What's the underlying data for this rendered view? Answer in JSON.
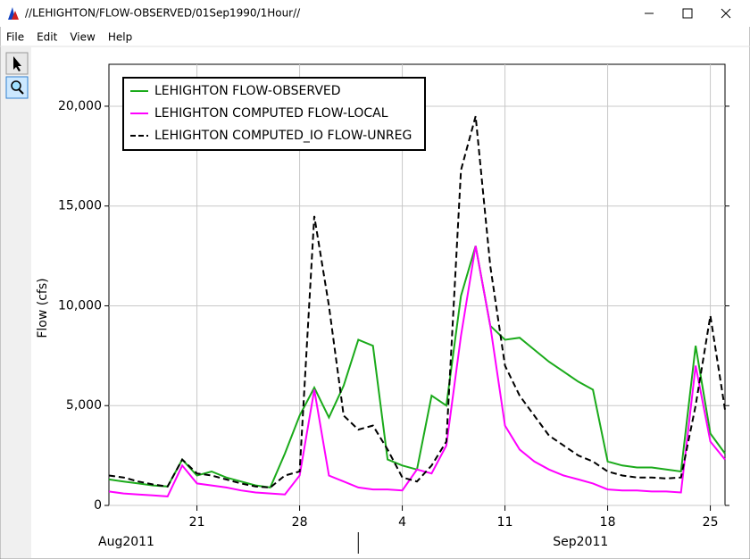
{
  "window": {
    "title": "//LEHIGHTON/FLOW-OBSERVED/01Sep1990/1Hour//"
  },
  "menu": [
    "File",
    "Edit",
    "View",
    "Help"
  ],
  "chart_data": {
    "type": "line",
    "y_label": "Flow (cfs)",
    "x": [
      "2011-08-15",
      "2011-08-16",
      "2011-08-17",
      "2011-08-18",
      "2011-08-19",
      "2011-08-20",
      "2011-08-21",
      "2011-08-22",
      "2011-08-23",
      "2011-08-24",
      "2011-08-25",
      "2011-08-26",
      "2011-08-27",
      "2011-08-28",
      "2011-08-29",
      "2011-08-30",
      "2011-08-31",
      "2011-09-01",
      "2011-09-02",
      "2011-09-03",
      "2011-09-04",
      "2011-09-05",
      "2011-09-06",
      "2011-09-07",
      "2011-09-08",
      "2011-09-09",
      "2011-09-10",
      "2011-09-11",
      "2011-09-12",
      "2011-09-13",
      "2011-09-14",
      "2011-09-15",
      "2011-09-16",
      "2011-09-17",
      "2011-09-18",
      "2011-09-19",
      "2011-09-20",
      "2011-09-21",
      "2011-09-22",
      "2011-09-23",
      "2011-09-24",
      "2011-09-25",
      "2011-09-26"
    ],
    "series": [
      {
        "name": "LEHIGHTON  FLOW-OBSERVED",
        "color": "#1aaa1a",
        "dash": false,
        "values": [
          1300,
          1200,
          1100,
          1000,
          950,
          2300,
          1500,
          1700,
          1400,
          1200,
          1000,
          900,
          2600,
          4500,
          5900,
          4400,
          6000,
          8300,
          8000,
          2300,
          2000,
          1800,
          5500,
          5000,
          10500,
          13000,
          9000,
          8300,
          8400,
          7800,
          7200,
          6700,
          6200,
          5800,
          2200,
          2000,
          1900,
          1900,
          1800,
          1700,
          8000,
          3600,
          2600
        ]
      },
      {
        "name": "LEHIGHTON COMPUTED FLOW-LOCAL",
        "color": "#ff00ff",
        "dash": false,
        "values": [
          700,
          600,
          550,
          500,
          450,
          2000,
          1100,
          1000,
          900,
          750,
          650,
          600,
          550,
          1500,
          5800,
          1500,
          1200,
          900,
          800,
          800,
          750,
          1800,
          1600,
          3000,
          8500,
          13000,
          9000,
          4000,
          2800,
          2200,
          1800,
          1500,
          1300,
          1100,
          800,
          750,
          750,
          700,
          700,
          650,
          7000,
          3200,
          2300
        ]
      },
      {
        "name": "LEHIGHTON COMPUTED_IO FLOW-UNREG",
        "color": "#000000",
        "dash": true,
        "values": [
          1500,
          1400,
          1200,
          1050,
          950,
          2300,
          1600,
          1500,
          1300,
          1100,
          950,
          900,
          1500,
          1700,
          14500,
          10000,
          4500,
          3800,
          4000,
          2800,
          1400,
          1200,
          2000,
          3200,
          16800,
          19500,
          12000,
          7000,
          5500,
          4500,
          3500,
          3000,
          2500,
          2200,
          1700,
          1500,
          1400,
          1400,
          1350,
          1400,
          5000,
          9500,
          4800
        ]
      }
    ],
    "xlim": [
      "2011-08-15",
      "2011-09-26"
    ],
    "xticks": [
      {
        "value": "2011-08-21",
        "label": "21"
      },
      {
        "value": "2011-08-28",
        "label": "28"
      },
      {
        "value": "2011-09-04",
        "label": "4"
      },
      {
        "value": "2011-09-11",
        "label": "11"
      },
      {
        "value": "2011-09-18",
        "label": "18"
      },
      {
        "value": "2011-09-25",
        "label": "25"
      }
    ],
    "xmonths": [
      {
        "value": "2011-08-01",
        "label": "Aug2011"
      },
      {
        "value": "2011-09-01",
        "label": "Sep2011"
      }
    ],
    "ylim": [
      0,
      22100
    ],
    "yticks": [
      0,
      {
        "value": 5000,
        "label": "5,000"
      },
      {
        "value": 10000,
        "label": "10,000"
      },
      {
        "value": 15000,
        "label": "15,000"
      },
      {
        "value": 20000,
        "label": "20,000"
      }
    ],
    "grid": true,
    "legend": "upper-left"
  }
}
